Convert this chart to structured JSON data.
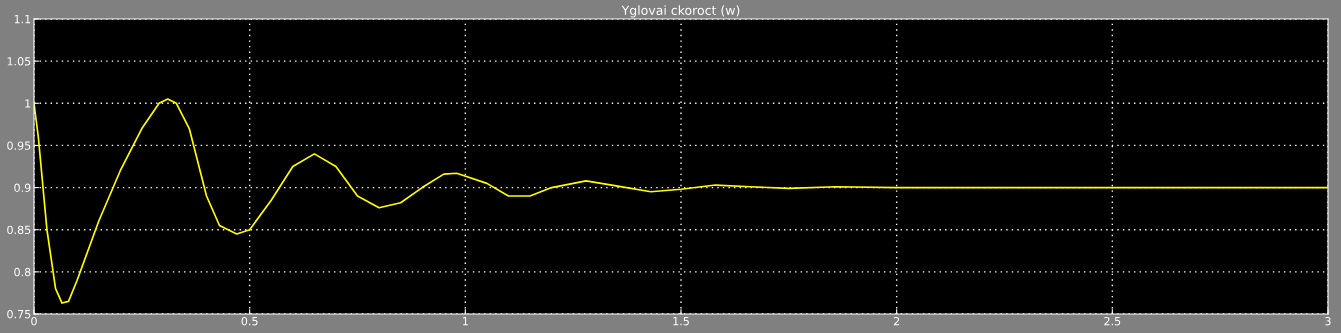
{
  "chart_data": {
    "type": "line",
    "title": "Yglovai ckoroct (w)",
    "series": [
      {
        "color": "#ffff00",
        "x": [
          0,
          0.01,
          0.03,
          0.05,
          0.065,
          0.08,
          0.1,
          0.15,
          0.2,
          0.25,
          0.29,
          0.31,
          0.33,
          0.36,
          0.4,
          0.43,
          0.47,
          0.5,
          0.55,
          0.6,
          0.65,
          0.7,
          0.75,
          0.8,
          0.85,
          0.9,
          0.95,
          0.98,
          1.05,
          1.1,
          1.15,
          1.2,
          1.28,
          1.35,
          1.43,
          1.5,
          1.58,
          1.66,
          1.75,
          1.86,
          2.0,
          2.5,
          3.0
        ],
        "values": [
          1.0,
          0.96,
          0.85,
          0.78,
          0.763,
          0.765,
          0.79,
          0.86,
          0.92,
          0.97,
          1.0,
          1.005,
          1.0,
          0.97,
          0.89,
          0.855,
          0.845,
          0.85,
          0.885,
          0.925,
          0.94,
          0.925,
          0.89,
          0.876,
          0.882,
          0.9,
          0.916,
          0.917,
          0.905,
          0.89,
          0.89,
          0.9,
          0.908,
          0.902,
          0.895,
          0.898,
          0.903,
          0.901,
          0.899,
          0.901,
          0.9,
          0.9,
          0.9
        ]
      }
    ],
    "xlim": [
      0,
      3
    ],
    "xticks": [
      0,
      0.5,
      1,
      1.5,
      2,
      2.5,
      3
    ],
    "ylim": [
      0.75,
      1.1
    ],
    "yticks": [
      0.75,
      0.8,
      0.85,
      0.9,
      0.95,
      1,
      1.05,
      1.1
    ],
    "grid": true,
    "marker": "none",
    "line_style": "solid"
  }
}
